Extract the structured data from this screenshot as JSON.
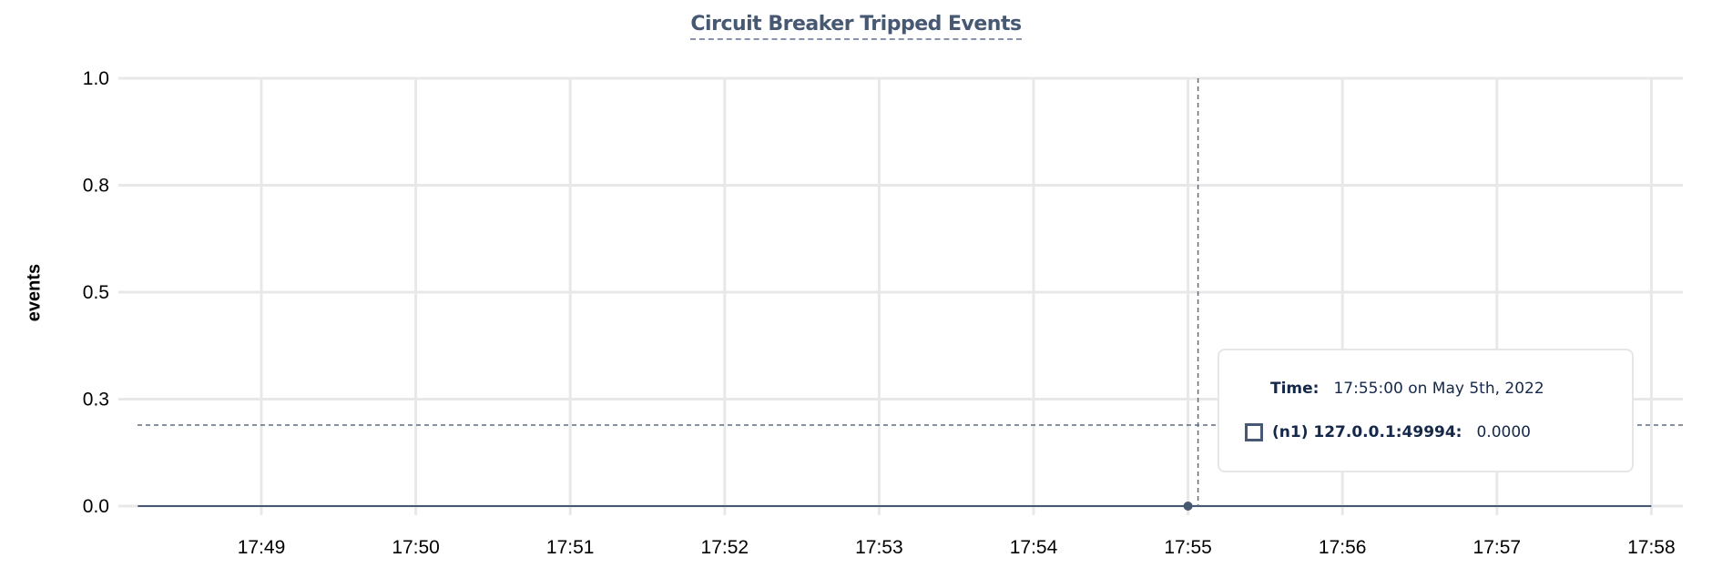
{
  "chart_data": {
    "type": "line",
    "title": "Circuit Breaker Tripped Events",
    "xlabel": "",
    "ylabel": "events",
    "ylim": [
      0,
      1
    ],
    "y_ticks": [
      0,
      0.25,
      0.5,
      0.75,
      1.0
    ],
    "y_tick_labels": [
      "0.0",
      "0.3",
      "0.5",
      "0.8",
      "1.0"
    ],
    "x_tick_labels": [
      "17:49",
      "17:50",
      "17:51",
      "17:52",
      "17:53",
      "17:54",
      "17:55",
      "17:56",
      "17:57",
      "17:58"
    ],
    "grid": true,
    "series": [
      {
        "name": "(n1) 127.0.0.1:49994",
        "color": "#475872",
        "x": [
          "17:48:12",
          "17:49:00",
          "17:50:00",
          "17:51:00",
          "17:52:00",
          "17:53:00",
          "17:54:00",
          "17:55:00",
          "17:56:00",
          "17:57:00",
          "17:58:00"
        ],
        "values": [
          0,
          0,
          0,
          0,
          0,
          0,
          0,
          0,
          0,
          0,
          0
        ]
      }
    ],
    "hover": {
      "x": "17:55:00"
    }
  },
  "tooltip": {
    "time_label": "Time:",
    "time_value": "17:55:00 on May 5th, 2022",
    "series_label": "(n1) 127.0.0.1:49994:",
    "series_value": "0.0000"
  }
}
